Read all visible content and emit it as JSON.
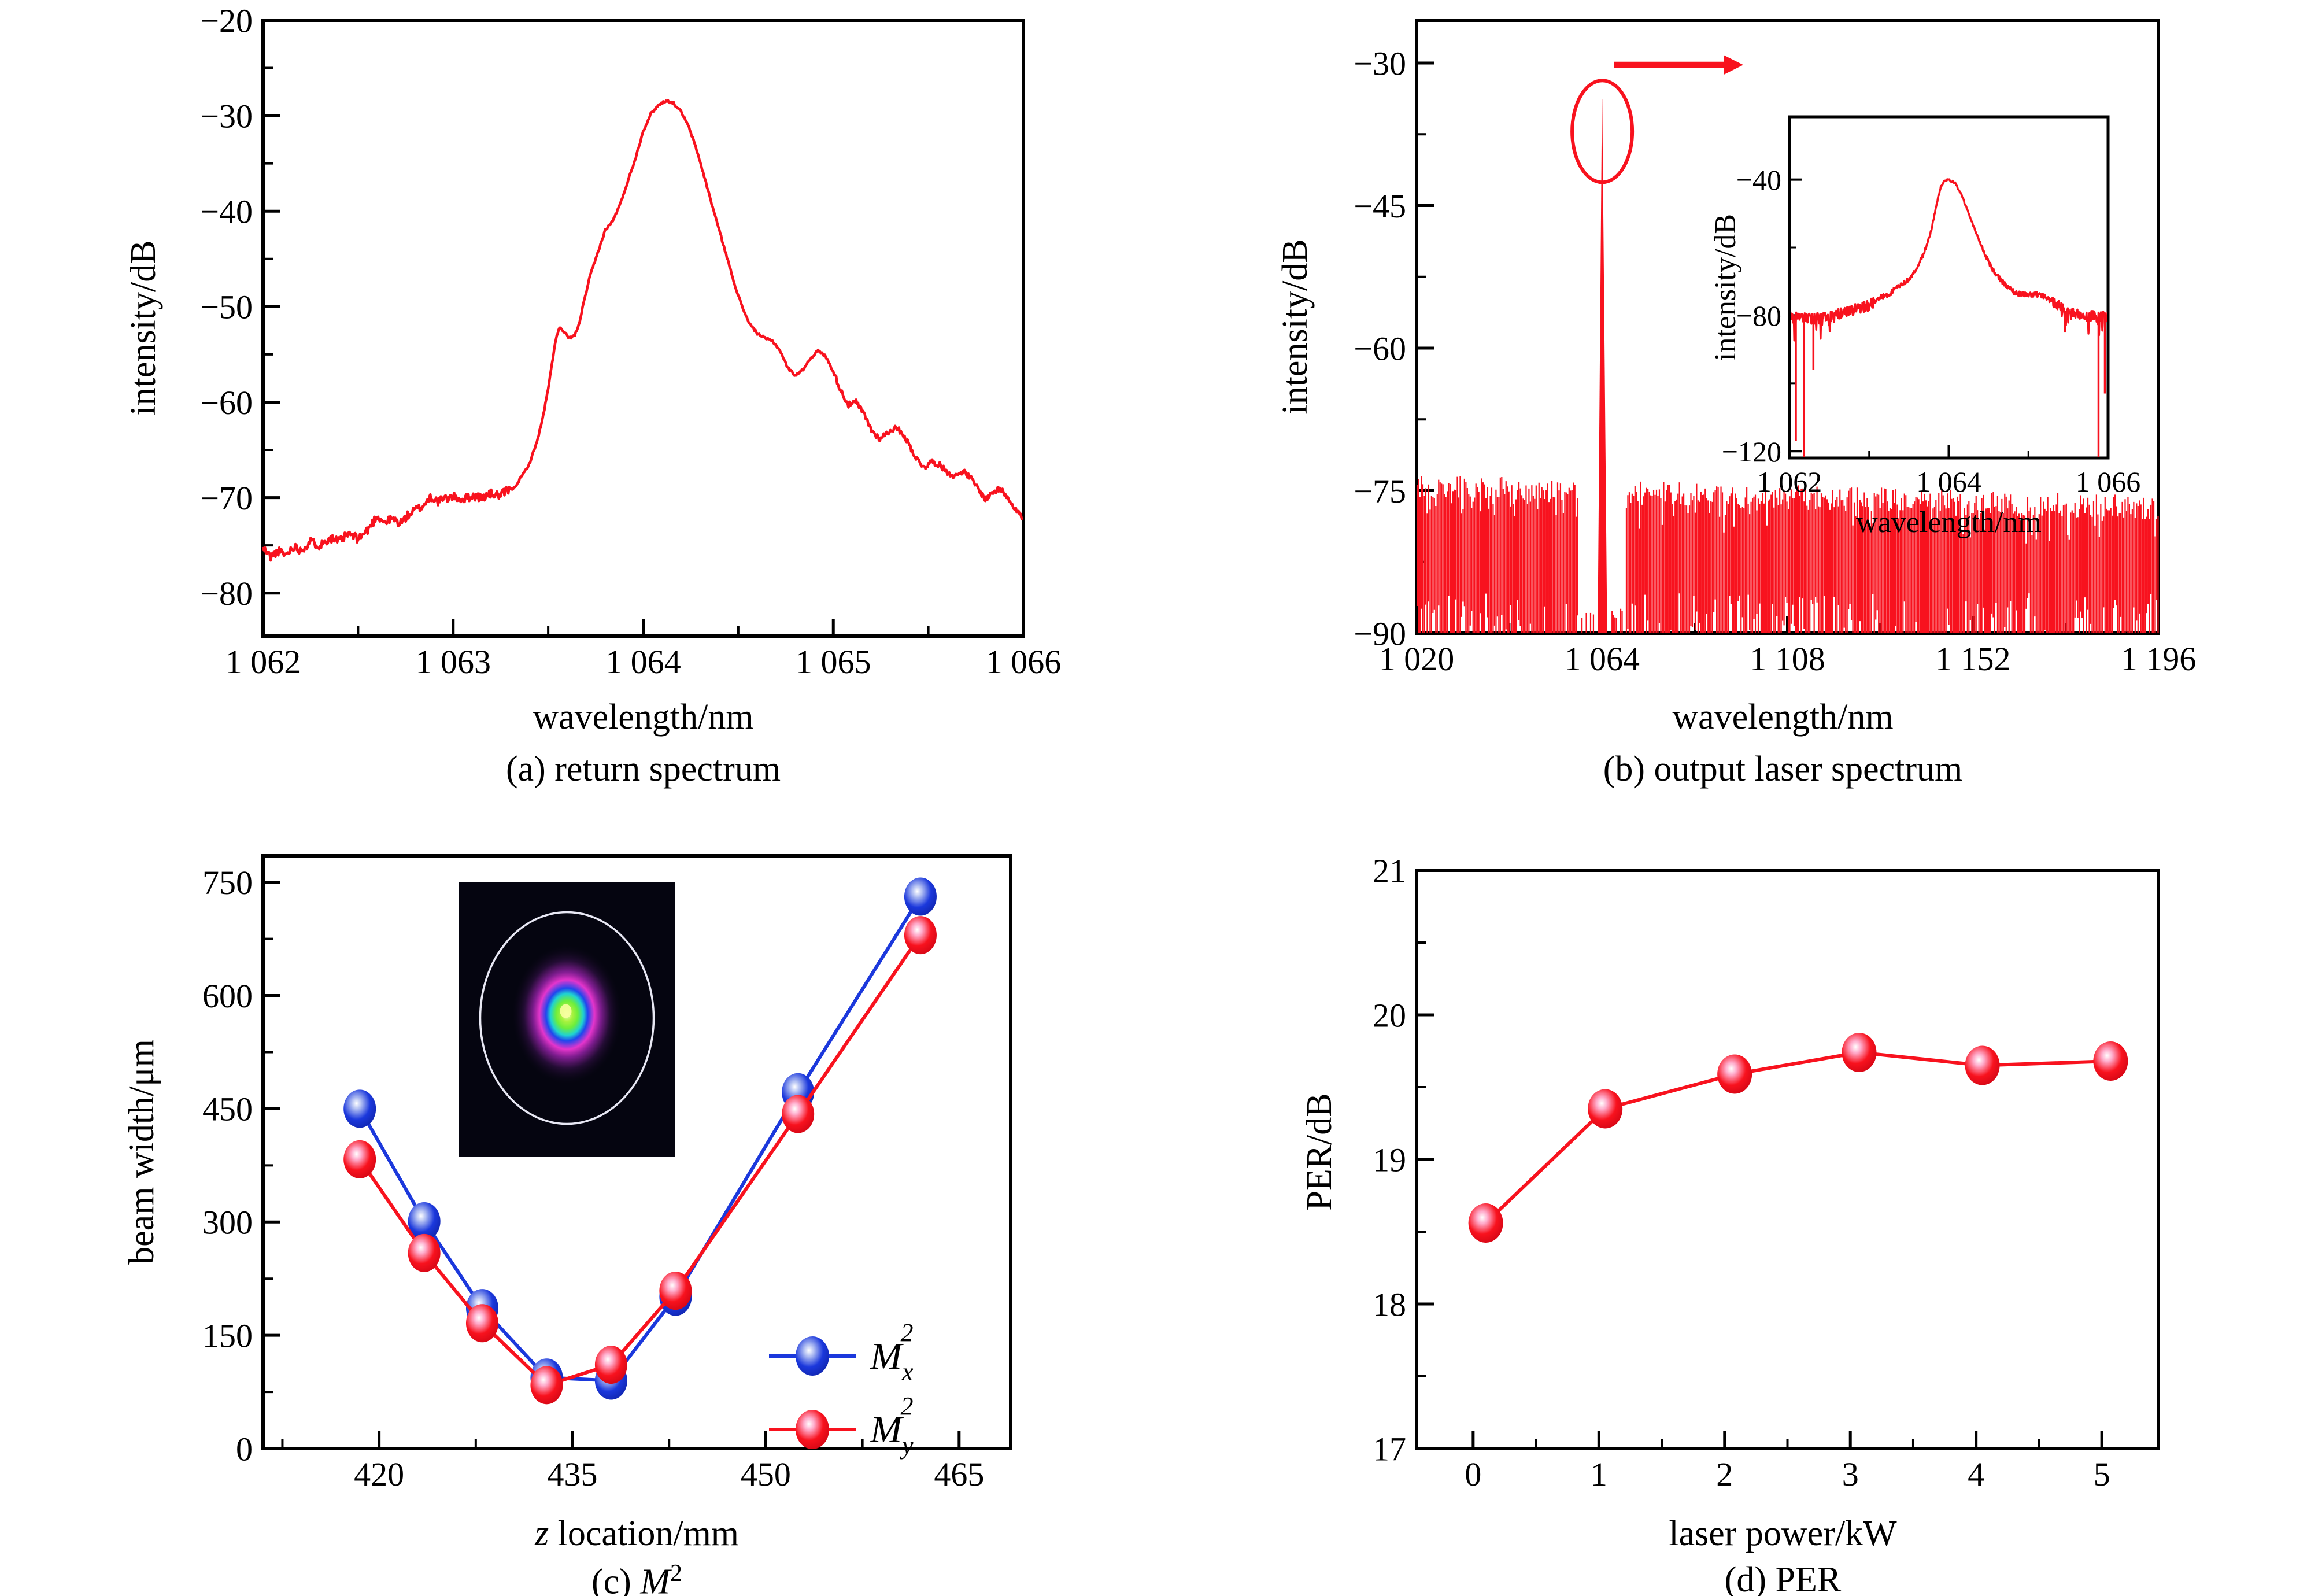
{
  "colors": {
    "red": "#f8121e",
    "blue": "#1b38dc",
    "black": "#000000",
    "background": "#ffffff"
  },
  "chart_data": [
    {
      "id": "a",
      "type": "line",
      "caption": "(a) return spectrum",
      "xlabel": "wavelength/nm",
      "ylabel": "intensity/dB",
      "xlim": [
        1062,
        1066
      ],
      "ylim": [
        -84.5,
        -20
      ],
      "xticks": [
        1062,
        1063,
        1064,
        1065,
        1066
      ],
      "xtick_labels": [
        "1 062",
        "1 063",
        "1 064",
        "1 065",
        "1 066"
      ],
      "xminor": [
        1062.5,
        1063.5,
        1064.5,
        1065.5
      ],
      "yticks": [
        -20,
        -30,
        -40,
        -50,
        -60,
        -70,
        -80
      ],
      "ytick_labels": [
        "−20",
        "−30",
        "−40",
        "−50",
        "−60",
        "−70",
        "−80"
      ],
      "yminor": [
        -25,
        -35,
        -45,
        -55,
        -65,
        -75
      ],
      "line_color": "#f8121e",
      "curve": [
        [
          1062.0,
          -75.3
        ],
        [
          1062.04,
          -76.2
        ],
        [
          1062.08,
          -75.6
        ],
        [
          1062.12,
          -76.0
        ],
        [
          1062.16,
          -75.1
        ],
        [
          1062.2,
          -75.5
        ],
        [
          1062.25,
          -74.6
        ],
        [
          1062.3,
          -75.0
        ],
        [
          1062.35,
          -74.2
        ],
        [
          1062.4,
          -74.6
        ],
        [
          1062.45,
          -73.8
        ],
        [
          1062.5,
          -74.3
        ],
        [
          1062.55,
          -73.4
        ],
        [
          1062.6,
          -71.9
        ],
        [
          1062.64,
          -72.6
        ],
        [
          1062.68,
          -72.2
        ],
        [
          1062.72,
          -72.7
        ],
        [
          1062.76,
          -71.9
        ],
        [
          1062.8,
          -71.3
        ],
        [
          1062.84,
          -70.9
        ],
        [
          1062.88,
          -69.9
        ],
        [
          1062.92,
          -70.4
        ],
        [
          1062.96,
          -70.1
        ],
        [
          1063.0,
          -69.9
        ],
        [
          1063.05,
          -70.2
        ],
        [
          1063.1,
          -69.8
        ],
        [
          1063.15,
          -70.0
        ],
        [
          1063.2,
          -69.6
        ],
        [
          1063.25,
          -69.8
        ],
        [
          1063.28,
          -69.3
        ],
        [
          1063.32,
          -69.0
        ],
        [
          1063.36,
          -67.8
        ],
        [
          1063.4,
          -66.5
        ],
        [
          1063.44,
          -64.2
        ],
        [
          1063.47,
          -61.8
        ],
        [
          1063.5,
          -58.6
        ],
        [
          1063.52,
          -56.0
        ],
        [
          1063.54,
          -53.4
        ],
        [
          1063.56,
          -52.2
        ],
        [
          1063.58,
          -52.6
        ],
        [
          1063.61,
          -53.3
        ],
        [
          1063.64,
          -53.0
        ],
        [
          1063.66,
          -52.0
        ],
        [
          1063.68,
          -50.2
        ],
        [
          1063.72,
          -46.8
        ],
        [
          1063.76,
          -44.4
        ],
        [
          1063.8,
          -42.0
        ],
        [
          1063.84,
          -41.0
        ],
        [
          1063.88,
          -39.2
        ],
        [
          1063.92,
          -36.8
        ],
        [
          1063.96,
          -34.4
        ],
        [
          1064.0,
          -31.6
        ],
        [
          1064.04,
          -29.8
        ],
        [
          1064.08,
          -28.9
        ],
        [
          1064.12,
          -28.4
        ],
        [
          1064.16,
          -28.7
        ],
        [
          1064.2,
          -29.6
        ],
        [
          1064.24,
          -31.2
        ],
        [
          1064.28,
          -33.5
        ],
        [
          1064.32,
          -36.3
        ],
        [
          1064.36,
          -39.2
        ],
        [
          1064.4,
          -42.0
        ],
        [
          1064.44,
          -44.8
        ],
        [
          1064.48,
          -47.6
        ],
        [
          1064.52,
          -50.0
        ],
        [
          1064.56,
          -51.8
        ],
        [
          1064.6,
          -52.8
        ],
        [
          1064.64,
          -53.3
        ],
        [
          1064.68,
          -53.6
        ],
        [
          1064.72,
          -54.6
        ],
        [
          1064.76,
          -56.4
        ],
        [
          1064.8,
          -57.2
        ],
        [
          1064.84,
          -56.6
        ],
        [
          1064.88,
          -55.4
        ],
        [
          1064.92,
          -54.6
        ],
        [
          1064.96,
          -55.2
        ],
        [
          1065.0,
          -56.8
        ],
        [
          1065.04,
          -58.8
        ],
        [
          1065.08,
          -60.3
        ],
        [
          1065.12,
          -60.0
        ],
        [
          1065.16,
          -61.2
        ],
        [
          1065.2,
          -62.9
        ],
        [
          1065.24,
          -63.8
        ],
        [
          1065.28,
          -63.3
        ],
        [
          1065.32,
          -62.7
        ],
        [
          1065.36,
          -63.1
        ],
        [
          1065.4,
          -64.5
        ],
        [
          1065.44,
          -66.0
        ],
        [
          1065.48,
          -66.8
        ],
        [
          1065.52,
          -66.2
        ],
        [
          1065.56,
          -66.6
        ],
        [
          1065.6,
          -67.3
        ],
        [
          1065.64,
          -67.8
        ],
        [
          1065.68,
          -67.2
        ],
        [
          1065.72,
          -67.9
        ],
        [
          1065.76,
          -69.0
        ],
        [
          1065.8,
          -70.2
        ],
        [
          1065.84,
          -69.4
        ],
        [
          1065.88,
          -69.1
        ],
        [
          1065.92,
          -70.0
        ],
        [
          1065.96,
          -71.2
        ],
        [
          1066.0,
          -72.3
        ]
      ]
    },
    {
      "id": "b",
      "type": "line",
      "caption": "(b) output laser spectrum",
      "xlabel": "wavelength/nm",
      "ylabel": "intensity/dB",
      "xlim": [
        1020,
        1196
      ],
      "ylim": [
        -90,
        -25.5
      ],
      "xticks": [
        1020,
        1064,
        1108,
        1152,
        1196
      ],
      "xtick_labels": [
        "1 020",
        "1 064",
        "1 108",
        "1 152",
        "1 196"
      ],
      "xminor": [
        1042,
        1086,
        1130,
        1174
      ],
      "yticks": [
        -30,
        -45,
        -60,
        -75,
        -90
      ],
      "ytick_labels": [
        "−30",
        "−45",
        "−60",
        "−75",
        "−90"
      ],
      "yminor": [
        -37.5,
        -52.5,
        -67.5,
        -82.5
      ],
      "line_color": "#f8121e",
      "noise_band": {
        "top_start": -74.6,
        "top_end": -76.8,
        "bottom": -90,
        "gap_center": 1064.1,
        "gap_halfwidth": 5.6
      },
      "peak": {
        "x": 1064.02,
        "top": -33.8,
        "base_halfwidth": 1.05
      },
      "annotation": {
        "name": "zoom-in-marker",
        "circle_x": 1064.05,
        "circle_y": -37.2,
        "arrow_level": -30.2
      },
      "inset": {
        "xlabel": "wavelength/nm",
        "ylabel": "intensity/dB",
        "xlim": [
          1062,
          1066
        ],
        "ylim": [
          -122,
          -21.5
        ],
        "xticks": [
          1062,
          1064,
          1066
        ],
        "xtick_labels": [
          "1 062",
          "1 064",
          "1 066"
        ],
        "xminor": [
          1063,
          1065
        ],
        "yticks": [
          -40,
          -80,
          -120
        ],
        "ytick_labels": [
          "−40",
          "−80",
          "−120"
        ],
        "yminor": [
          -60,
          -100
        ],
        "noise_floor": -80,
        "curve": [
          [
            1062.0,
            -80.0
          ],
          [
            1062.3,
            -81.0
          ],
          [
            1062.5,
            -80.5
          ],
          [
            1062.7,
            -79.0
          ],
          [
            1063.0,
            -77.0
          ],
          [
            1063.15,
            -74.5
          ],
          [
            1063.25,
            -74.0
          ],
          [
            1063.35,
            -71.5
          ],
          [
            1063.5,
            -69.5
          ],
          [
            1063.6,
            -66.0
          ],
          [
            1063.7,
            -61.0
          ],
          [
            1063.78,
            -55.0
          ],
          [
            1063.85,
            -47.0
          ],
          [
            1063.9,
            -42.0
          ],
          [
            1063.95,
            -40.2
          ],
          [
            1064.0,
            -40.0
          ],
          [
            1064.08,
            -41.0
          ],
          [
            1064.15,
            -44.0
          ],
          [
            1064.25,
            -50.0
          ],
          [
            1064.35,
            -56.0
          ],
          [
            1064.45,
            -62.0
          ],
          [
            1064.55,
            -66.5
          ],
          [
            1064.65,
            -69.5
          ],
          [
            1064.75,
            -72.0
          ],
          [
            1064.85,
            -73.5
          ],
          [
            1065.0,
            -74.0
          ],
          [
            1065.1,
            -73.8
          ],
          [
            1065.2,
            -74.5
          ],
          [
            1065.3,
            -76.0
          ],
          [
            1065.4,
            -77.5
          ],
          [
            1065.5,
            -79.0
          ],
          [
            1065.7,
            -80.0
          ],
          [
            1066.0,
            -80.5
          ]
        ],
        "down_spikes": [
          [
            1062.08,
            -117
          ],
          [
            1062.18,
            -122
          ],
          [
            1062.3,
            -96
          ],
          [
            1065.88,
            -122
          ],
          [
            1065.96,
            -103
          ]
        ]
      }
    },
    {
      "id": "c",
      "type": "scatter-line",
      "caption_prefix": "(c) ",
      "caption_main": "M",
      "caption_sup": "2",
      "xlabel_italic": "z",
      "xlabel_rest": " location/mm",
      "ylabel": "beam width/μm",
      "xlim": [
        411,
        469
      ],
      "ylim": [
        0,
        785
      ],
      "xticks": [
        420,
        435,
        450,
        465
      ],
      "xtick_labels": [
        "420",
        "435",
        "450",
        "465"
      ],
      "xminor": [
        412.5,
        427.5,
        442.5,
        457.5
      ],
      "yticks": [
        0,
        150,
        300,
        450,
        600,
        750
      ],
      "ytick_labels": [
        "0",
        "150",
        "300",
        "450",
        "600",
        "750"
      ],
      "yminor": [
        75,
        225,
        375,
        525,
        675
      ],
      "z": [
        418.5,
        423.5,
        428,
        433,
        438,
        443,
        452.5,
        462
      ],
      "series": [
        {
          "name": "Mx2",
          "label_main": "M",
          "label_sub": "x",
          "label_sup": "2",
          "color": "#1b38dc",
          "values": [
            450,
            301,
            186,
            94,
            90,
            201,
            472,
            731
          ]
        },
        {
          "name": "My2",
          "label_main": "M",
          "label_sub": "y",
          "label_sup": "2",
          "color": "#f8121e",
          "values": [
            383,
            259,
            166,
            84,
            111,
            209,
            443,
            680
          ]
        }
      ],
      "beam_inset": {
        "desc": "beam profile camera image",
        "ring_color": "#e8e8f4"
      }
    },
    {
      "id": "d",
      "type": "scatter-line",
      "caption": "(d) PER",
      "xlabel": "laser power/kW",
      "ylabel": "PER/dB",
      "xlim": [
        -0.45,
        5.45
      ],
      "ylim": [
        17,
        21
      ],
      "xticks": [
        0,
        1,
        2,
        3,
        4,
        5
      ],
      "xtick_labels": [
        "0",
        "1",
        "2",
        "3",
        "4",
        "5"
      ],
      "xminor": [
        0.5,
        1.5,
        2.5,
        3.5,
        4.5
      ],
      "yticks": [
        17,
        18,
        19,
        20,
        21
      ],
      "ytick_labels": [
        "17",
        "18",
        "19",
        "20",
        "21"
      ],
      "yminor": [
        17.5,
        18.5,
        19.5,
        20.5
      ],
      "color": "#f8121e",
      "x": [
        0.1,
        1.05,
        2.08,
        3.07,
        4.05,
        5.07
      ],
      "values": [
        18.56,
        19.35,
        19.59,
        19.74,
        19.65,
        19.68
      ]
    }
  ]
}
